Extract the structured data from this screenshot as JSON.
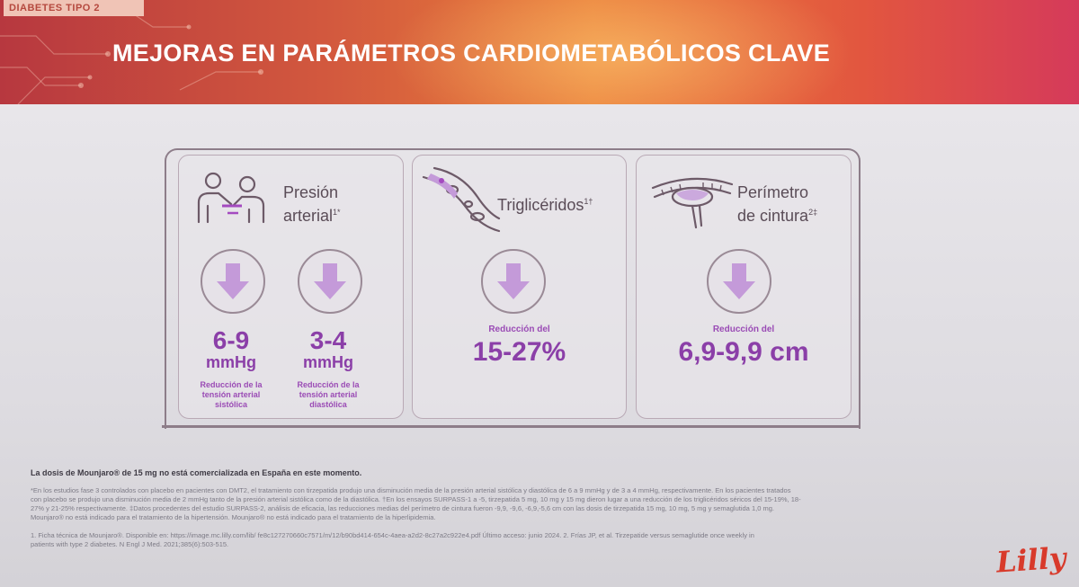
{
  "header": {
    "tag": "DIABETES TIPO 2",
    "title": "MEJORAS EN PARÁMETROS CARDIOMETABÓLICOS CLAVE"
  },
  "cards": [
    {
      "title_line1": "Presión",
      "title_line2": "arterial",
      "title_sup": "1*",
      "icon": "doctor-patient-icon",
      "metrics": [
        {
          "value": "6-9",
          "unit": "mmHg",
          "desc1": "Reducción de la",
          "desc2": "tensión arterial",
          "desc3": "sistólica"
        },
        {
          "value": "3-4",
          "unit": "mmHg",
          "desc1": "Reducción de la",
          "desc2": "tensión arterial",
          "desc3": "diastólica"
        }
      ]
    },
    {
      "title_line1": "Triglicéridos",
      "title_sup": "1†",
      "icon": "blood-vessel-icon",
      "metric_label": "Reducción del",
      "metric_value": "15-27%"
    },
    {
      "title_line1": "Perímetro",
      "title_line2": "de cintura",
      "title_sup": "2‡",
      "icon": "tape-measure-icon",
      "metric_label": "Reducción del",
      "metric_value": "6,9-9,9 cm"
    }
  ],
  "footnotes": {
    "bold": "La dosis de Mounjaro® de 15 mg no está comercializada en España en este momento.",
    "line1": "*En los estudios fase 3 controlados con placebo en pacientes con DMT2, el tratamiento con tirzepatida produjo una disminución media de la presión arterial sistólica y diastólica de 6 a 9 mmHg y de 3 a 4 mmHg, respectivamente. En los pacientes tratados",
    "line2": "con placebo se produjo una disminución media de 2 mmHg tanto de la presión arterial sistólica como de la diastólica. †En los ensayos SURPASS-1 a -5, tirzepatida 5 mg, 10 mg y 15 mg dieron lugar a una reducción de los triglicéridos séricos del 15-19%, 18-",
    "line3": "27% y 21-25% respectivamente. ‡Datos procedentes del estudio SURPASS-2, análisis de eficacia, las reducciones medias del perímetro de cintura fueron -9,9, -9,6, -6,9,-5,6 cm con las dosis de tirzepatida 15 mg, 10 mg, 5 mg y semaglutida 1,0 mg.",
    "line4": "Mounjaro® no está indicado para el tratamiento de la hipertensión. Mounjaro® no está indicado para el tratamiento de la hiperlipidemia.",
    "ref1": "1. Ficha técnica de Mounjaro®. Disponible en: https://image.mc.lilly.com/lib/ fe8c127270660c7571/m/12/b90bd414-654c-4aea-a2d2-8c27a2c922e4.pdf Último acceso: junio 2024. 2. Frías JP, et al. Tirzepatide versus semaglutide once weekly in",
    "ref2": "patients with type 2 diabetes. N Engl J Med. 2021;385(6):503-515."
  },
  "logo": "Lilly"
}
